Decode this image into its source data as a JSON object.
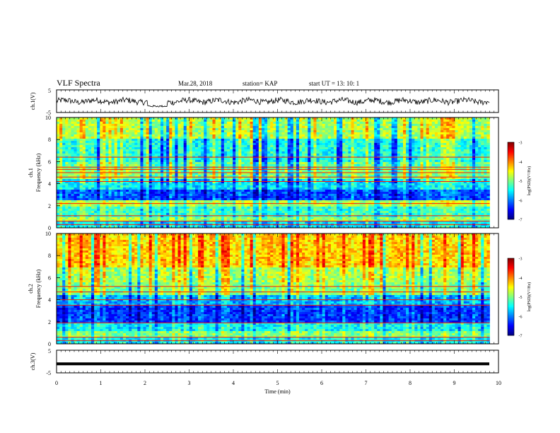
{
  "header": {
    "title": "VLF Spectra",
    "date": "Mar.28, 2018",
    "station": "station= KAP",
    "start": "start UT =   13: 10: 1"
  },
  "chart_data": [
    {
      "type": "line",
      "name": "ch1-waveform",
      "ylabel": "ch.1(V)",
      "ylim": [
        -5,
        5
      ],
      "ytick_labels": [
        "5",
        "-5"
      ],
      "xlim": [
        0,
        10
      ],
      "note_shape": "noisy signal around 0 V with amplitude ~ +/-2 V, dip near x=2.1 to 2.5 min",
      "dip_x": [
        2.05,
        2.5
      ],
      "dip_y": -2.2
    },
    {
      "type": "heatmap",
      "name": "ch1-spectrogram",
      "channel_label": "ch.1",
      "ylabel": "Frequency (kHz)",
      "ylim": [
        0,
        10
      ],
      "yticks": [
        0,
        2,
        4,
        6,
        8,
        10
      ],
      "xlim": [
        0,
        9.8
      ],
      "colorbar": {
        "label": "log(PSD)(V²/Hz)",
        "range": [
          -7,
          -3
        ],
        "ticks": [
          "-3",
          "-4",
          "-5",
          "-6",
          "-7"
        ]
      },
      "bands_khz": [
        {
          "f": [
            0.0,
            0.5
          ],
          "level": -5.6
        },
        {
          "f": [
            0.5,
            1.0
          ],
          "level": -4.9
        },
        {
          "f": [
            1.0,
            2.0
          ],
          "level": -5.3
        },
        {
          "f": [
            2.0,
            2.5
          ],
          "level": -4.8
        },
        {
          "f": [
            2.5,
            3.5
          ],
          "level": -6.2
        },
        {
          "f": [
            3.5,
            4.5
          ],
          "level": -5.6
        },
        {
          "f": [
            4.5,
            5.3
          ],
          "level": -5.0
        },
        {
          "f": [
            5.3,
            6.0
          ],
          "level": -5.1
        },
        {
          "f": [
            6.0,
            8.0
          ],
          "level": -5.4
        },
        {
          "f": [
            8.0,
            10.0
          ],
          "level": -4.8
        }
      ],
      "lines_khz": [
        0.3,
        0.6,
        1.1,
        2.2,
        4.2,
        4.6,
        5.0,
        5.3,
        5.5,
        6.4
      ]
    },
    {
      "type": "heatmap",
      "name": "ch2-spectrogram",
      "channel_label": "ch.2",
      "ylabel": "Frequency (kHz)",
      "ylim": [
        0,
        10
      ],
      "yticks": [
        0,
        2,
        4,
        6,
        8,
        10
      ],
      "xlim": [
        0,
        9.8
      ],
      "colorbar": {
        "label": "log(PSD)(V²/Hz)",
        "range": [
          -7,
          -3
        ],
        "ticks": [
          "-3",
          "-4",
          "-5",
          "-6",
          "-7"
        ]
      },
      "bands_khz": [
        {
          "f": [
            0.0,
            0.5
          ],
          "level": -5.5
        },
        {
          "f": [
            0.5,
            1.2
          ],
          "level": -5.0
        },
        {
          "f": [
            1.2,
            2.0
          ],
          "level": -5.5
        },
        {
          "f": [
            2.0,
            3.5
          ],
          "level": -6.3
        },
        {
          "f": [
            3.5,
            4.5
          ],
          "level": -5.8
        },
        {
          "f": [
            4.5,
            5.5
          ],
          "level": -5.0
        },
        {
          "f": [
            5.5,
            7.0
          ],
          "level": -4.8
        },
        {
          "f": [
            7.0,
            10.0
          ],
          "level": -4.3
        }
      ],
      "lines_khz": [
        0.3,
        0.6,
        1.9,
        3.5,
        4.0,
        4.7,
        5.2
      ]
    },
    {
      "type": "line",
      "name": "ch3-waveform",
      "ylabel": "ch.3(V)",
      "ylim": [
        -5,
        5
      ],
      "ytick_labels": [
        "5",
        "-5"
      ],
      "xlim": [
        0,
        10
      ],
      "constant_value": -1.0,
      "xlabel": "Time (min)",
      "xtick_labels": [
        "0",
        "1",
        "2",
        "3",
        "4",
        "5",
        "6",
        "7",
        "8",
        "9",
        "10"
      ]
    }
  ]
}
